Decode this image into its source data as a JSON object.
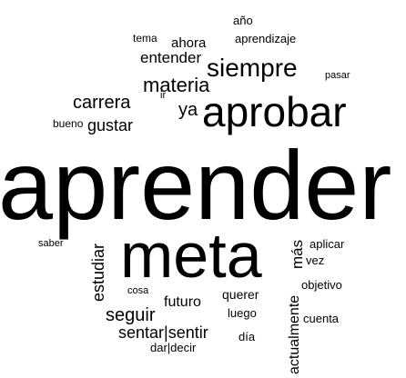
{
  "words": [
    "año",
    "tema",
    "ahora",
    "aprendizaje",
    "entender",
    "siempre",
    "pasar",
    "materia",
    "carrera",
    "ir",
    "ya",
    "aprobar",
    "bueno",
    "gustar",
    "aprender",
    "saber",
    "estudiar",
    "meta",
    "más",
    "aplicar",
    "vez",
    "cosa",
    "querer",
    "objetivo",
    "futuro",
    "seguir",
    "luego",
    "actualmente",
    "cuenta",
    "sentar|sentir",
    "día",
    "dar|decir"
  ]
}
